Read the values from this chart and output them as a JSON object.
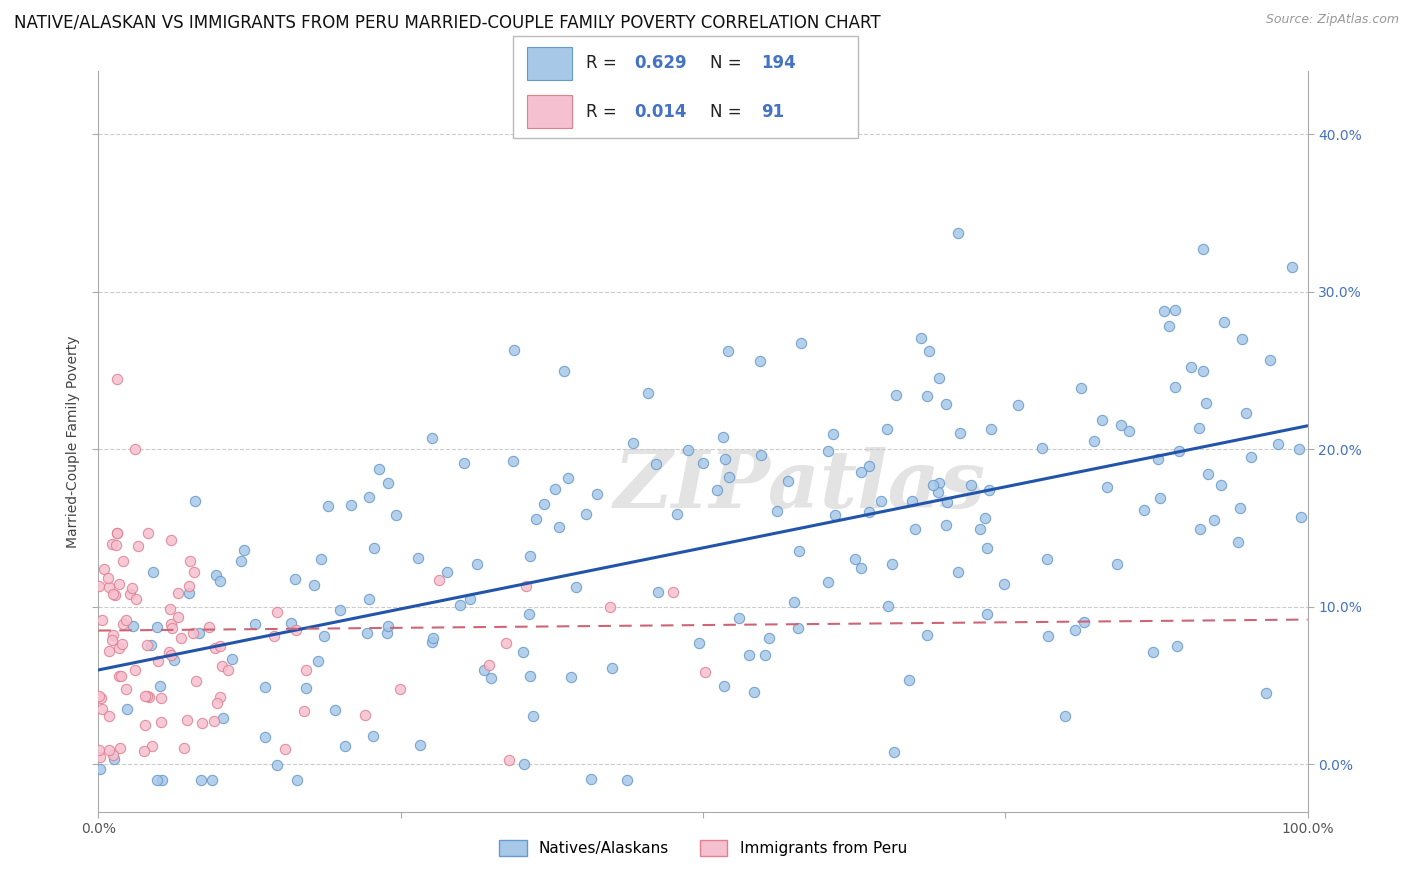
{
  "title": "NATIVE/ALASKAN VS IMMIGRANTS FROM PERU MARRIED-COUPLE FAMILY POVERTY CORRELATION CHART",
  "source": "Source: ZipAtlas.com",
  "ylabel": "Married-Couple Family Poverty",
  "xlim": [
    0,
    100
  ],
  "ylim": [
    -3,
    44
  ],
  "yticks": [
    0,
    10,
    20,
    30,
    40
  ],
  "ytick_labels": [
    "0.0%",
    "10.0%",
    "20.0%",
    "30.0%",
    "40.0%"
  ],
  "blue_R": 0.629,
  "blue_N": 194,
  "pink_R": 0.014,
  "pink_N": 91,
  "blue_scatter_color": "#a8c8e8",
  "blue_scatter_edge": "#6699cc",
  "pink_scatter_color": "#f5c0d0",
  "pink_scatter_edge": "#e08090",
  "blue_line_color": "#2255aa",
  "pink_line_color": "#cc6677",
  "legend_blue_label": "Natives/Alaskans",
  "legend_pink_label": "Immigrants from Peru",
  "watermark": "ZIPatlas",
  "background_color": "#ffffff",
  "grid_color": "#cccccc",
  "title_fontsize": 12,
  "axis_label_fontsize": 10,
  "tick_fontsize": 10,
  "right_tick_color": "#4472c4",
  "seed_blue": 101,
  "seed_pink": 55,
  "blue_trend_y0": 6.0,
  "blue_trend_y1": 21.5,
  "pink_trend_y0": 8.5,
  "pink_trend_y1": 9.2
}
